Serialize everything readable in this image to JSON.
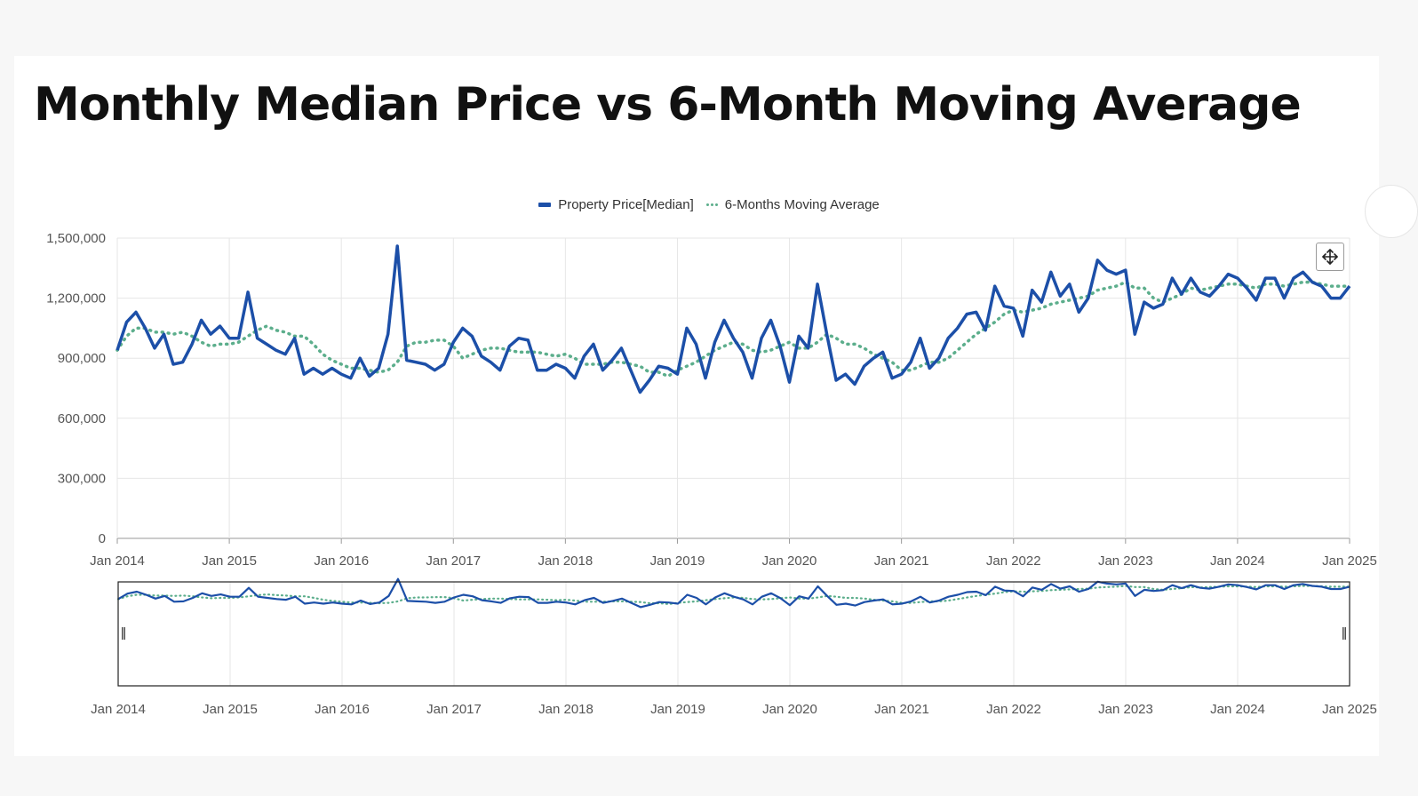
{
  "page": {
    "title": "Monthly Median Price vs 6-Month Moving Average"
  },
  "colors": {
    "price_line": "#1c4fa8",
    "moving_average": "#5cae8c",
    "grid": "#e6e6e6",
    "axis": "#999999"
  },
  "icons": {
    "pan": "move-arrows-icon",
    "handle": "grip-handle-icon"
  },
  "chart_data": {
    "type": "line",
    "title": "Monthly Median Price vs 6-Month Moving Average",
    "xlabel": "",
    "ylabel": "",
    "ylim": [
      0,
      1500000
    ],
    "xlim": [
      "2014-01",
      "2025-01"
    ],
    "y_ticks": [
      "0",
      "300,000",
      "600,000",
      "900,000",
      "1,200,000",
      "1,500,000"
    ],
    "x_ticks": [
      "Jan 2014",
      "Jan 2015",
      "Jan 2016",
      "Jan 2017",
      "Jan 2018",
      "Jan 2019",
      "Jan 2020",
      "Jan 2021",
      "Jan 2022",
      "Jan 2023",
      "Jan 2024",
      "Jan 2025"
    ],
    "grid": true,
    "legend_position": "top-center",
    "start_month": "2014-01",
    "series": [
      {
        "name": "Property Price[Median]",
        "style": "solid",
        "values": [
          940000,
          1080000,
          1130000,
          1050000,
          950000,
          1020000,
          870000,
          880000,
          970000,
          1090000,
          1020000,
          1060000,
          1000000,
          1000000,
          1230000,
          1000000,
          970000,
          940000,
          920000,
          1000000,
          820000,
          850000,
          820000,
          850000,
          820000,
          800000,
          900000,
          810000,
          850000,
          1020000,
          1460000,
          890000,
          880000,
          870000,
          840000,
          870000,
          980000,
          1050000,
          1010000,
          910000,
          880000,
          840000,
          960000,
          1000000,
          990000,
          840000,
          840000,
          870000,
          850000,
          800000,
          910000,
          970000,
          840000,
          890000,
          950000,
          840000,
          730000,
          790000,
          860000,
          850000,
          820000,
          1050000,
          970000,
          800000,
          980000,
          1090000,
          1000000,
          930000,
          800000,
          1000000,
          1090000,
          960000,
          780000,
          1010000,
          950000,
          1270000,
          1020000,
          790000,
          820000,
          770000,
          860000,
          900000,
          930000,
          800000,
          820000,
          880000,
          1000000,
          850000,
          900000,
          1000000,
          1050000,
          1120000,
          1130000,
          1040000,
          1260000,
          1160000,
          1150000,
          1010000,
          1240000,
          1180000,
          1330000,
          1210000,
          1270000,
          1130000,
          1200000,
          1390000,
          1340000,
          1320000,
          1340000,
          1020000,
          1180000,
          1150000,
          1170000,
          1300000,
          1220000,
          1300000,
          1230000,
          1210000,
          1260000,
          1320000,
          1300000,
          1250000,
          1190000,
          1300000,
          1300000,
          1200000,
          1300000,
          1330000,
          1280000,
          1260000,
          1200000,
          1200000,
          1260000
        ]
      },
      {
        "name": "6-Months Moving Average",
        "style": "dotted",
        "values": [
          940000,
          1010000,
          1050000,
          1050000,
          1030000,
          1030000,
          1020000,
          1030000,
          1010000,
          980000,
          960000,
          970000,
          970000,
          980000,
          1010000,
          1040000,
          1060000,
          1040000,
          1030000,
          1010000,
          1010000,
          970000,
          920000,
          890000,
          870000,
          850000,
          850000,
          840000,
          830000,
          840000,
          880000,
          960000,
          980000,
          980000,
          990000,
          990000,
          960000,
          900000,
          920000,
          940000,
          950000,
          950000,
          940000,
          930000,
          930000,
          930000,
          920000,
          910000,
          920000,
          900000,
          870000,
          870000,
          870000,
          880000,
          880000,
          870000,
          860000,
          830000,
          830000,
          810000,
          840000,
          860000,
          880000,
          910000,
          940000,
          960000,
          980000,
          970000,
          940000,
          930000,
          940000,
          960000,
          980000,
          950000,
          950000,
          980000,
          1020000,
          1000000,
          970000,
          970000,
          950000,
          920000,
          900000,
          880000,
          840000,
          840000,
          860000,
          880000,
          880000,
          900000,
          940000,
          980000,
          1020000,
          1050000,
          1080000,
          1120000,
          1140000,
          1130000,
          1140000,
          1150000,
          1170000,
          1180000,
          1190000,
          1200000,
          1210000,
          1240000,
          1250000,
          1260000,
          1280000,
          1250000,
          1250000,
          1200000,
          1180000,
          1200000,
          1220000,
          1250000,
          1240000,
          1250000,
          1260000,
          1270000,
          1270000,
          1260000,
          1250000,
          1270000,
          1270000,
          1260000,
          1270000,
          1280000,
          1280000,
          1270000,
          1260000,
          1260000,
          1260000
        ]
      }
    ],
    "navigator": {
      "x_ticks": [
        "Jan 2014",
        "Jan 2015",
        "Jan 2016",
        "Jan 2017",
        "Jan 2018",
        "Jan 2019",
        "Jan 2020",
        "Jan 2021",
        "Jan 2022",
        "Jan 2023",
        "Jan 2024",
        "Jan 2025"
      ]
    }
  }
}
